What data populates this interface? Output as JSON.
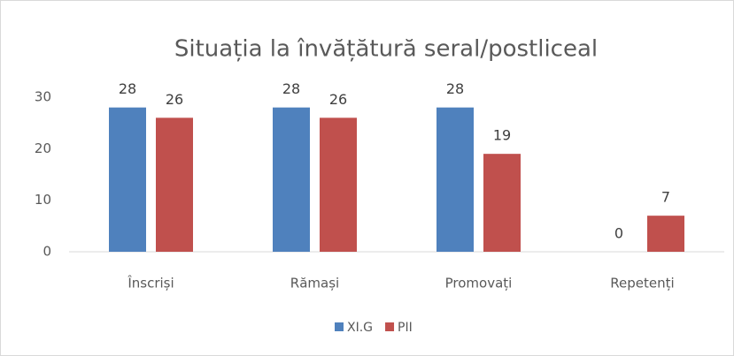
{
  "chart_data": {
    "type": "bar",
    "title": "Situația la învățătură seral/postliceal",
    "categories": [
      "Înscriși",
      "Rămași",
      "Promovați",
      "Repetenți"
    ],
    "series": [
      {
        "name": "XI.G",
        "color": "#4f81bd",
        "values": [
          28,
          28,
          28,
          0
        ]
      },
      {
        "name": "PII",
        "color": "#c0504d",
        "values": [
          26,
          26,
          19,
          7
        ]
      }
    ],
    "ylim": [
      0,
      30
    ],
    "yticks": [
      0,
      10,
      20,
      30
    ],
    "grid": false,
    "legend": "bottom"
  }
}
